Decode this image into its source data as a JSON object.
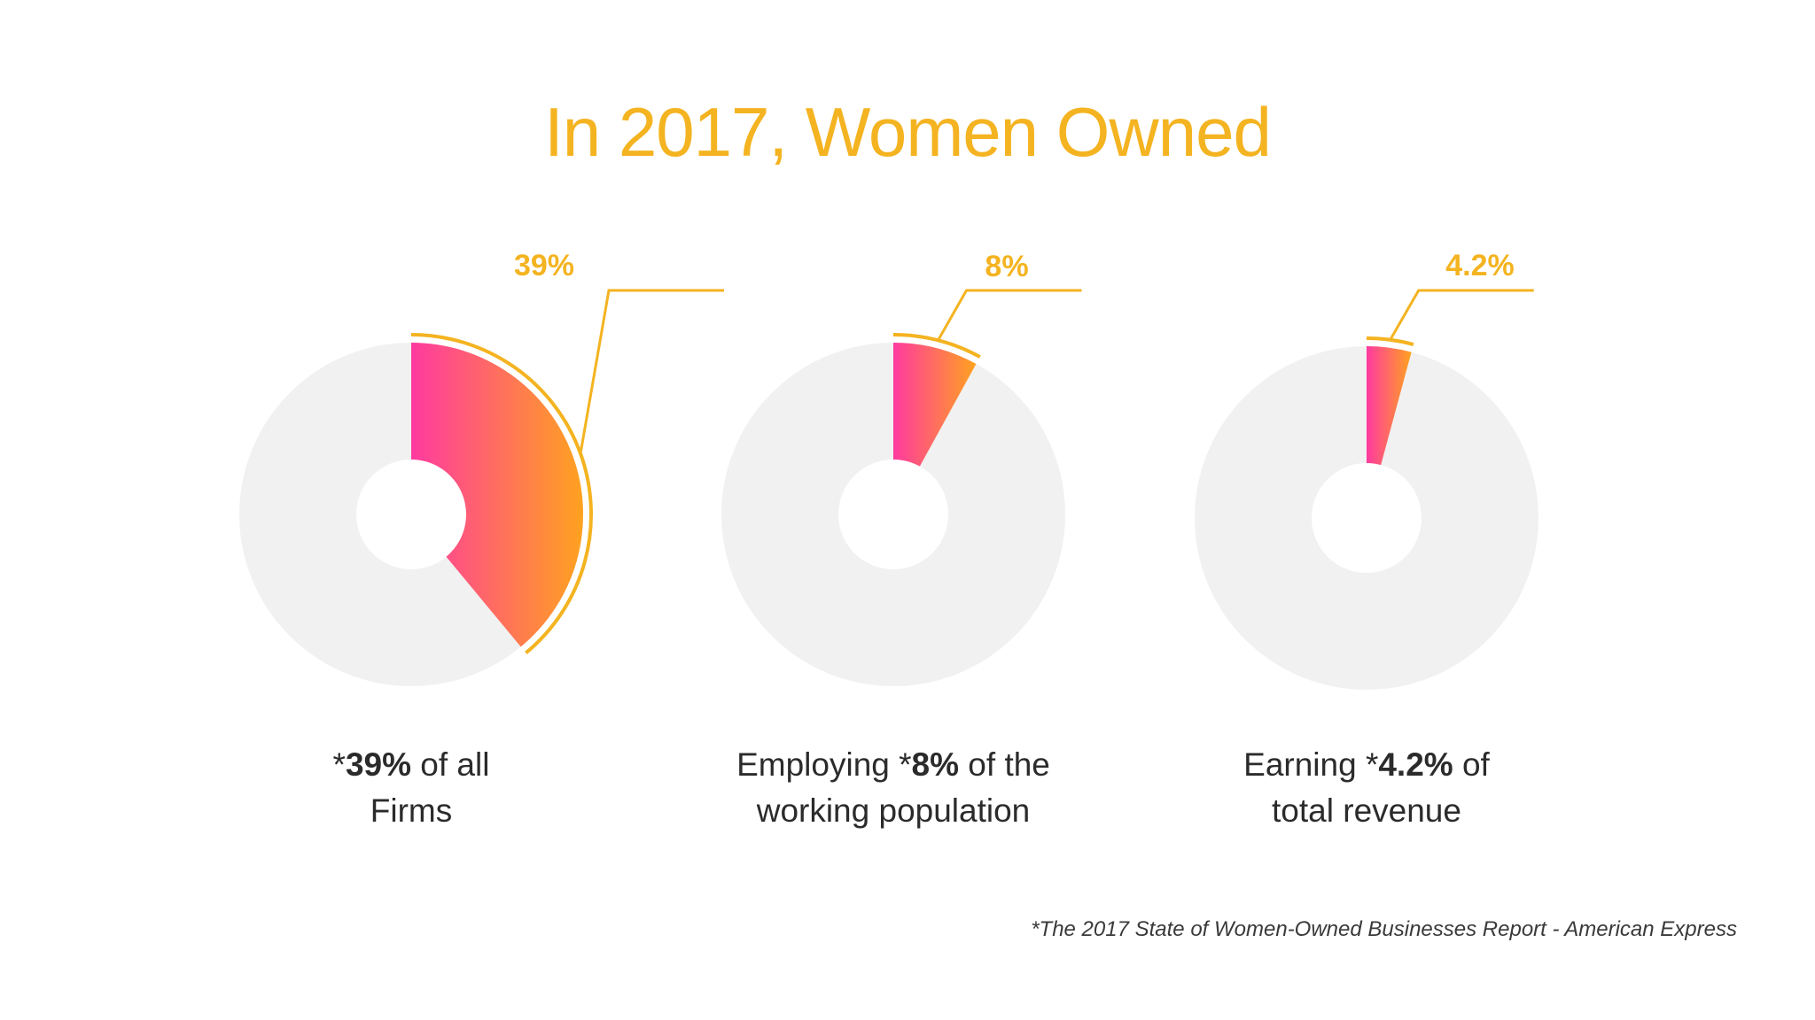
{
  "title": "In 2017, Women Owned",
  "chart_data": [
    {
      "type": "pie",
      "value": 39,
      "value_label": "39%",
      "caption": {
        "prefix": "*",
        "highlight": "39%",
        "rest_line1": " of all",
        "line2": "Firms"
      }
    },
    {
      "type": "pie",
      "value": 8,
      "value_label": "8%",
      "caption": {
        "prefix": "Employing *",
        "highlight": "8%",
        "rest_line1": " of the",
        "line2": "working population"
      }
    },
    {
      "type": "pie",
      "value": 4.2,
      "value_label": "4.2%",
      "caption": {
        "prefix": "Earning *",
        "highlight": "4.2%",
        "rest_line1": " of",
        "line2": "total revenue"
      }
    }
  ],
  "footnote": "*The 2017 State of Women-Owned Businesses Report - American Express",
  "colors": {
    "title": "#f4b320",
    "ring_background": "#f1f1f1",
    "slice_gradient_start": "#ff3aa0",
    "slice_gradient_end": "#ffa21f",
    "outline": "#f4b320"
  }
}
